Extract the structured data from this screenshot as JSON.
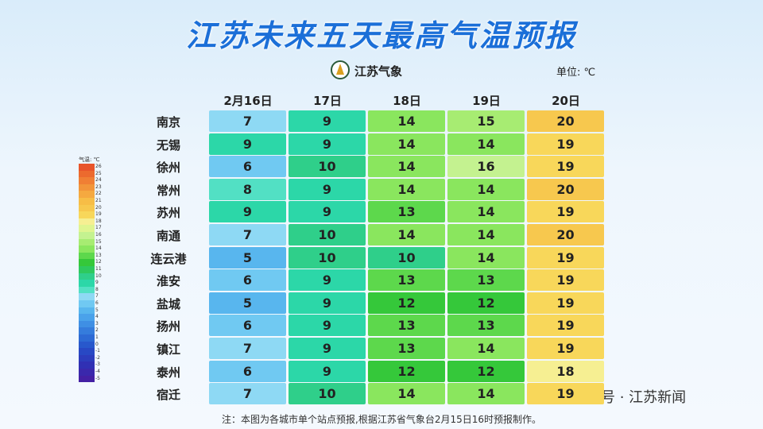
{
  "title": "江苏未来五天最高气温预报",
  "logo": "江苏气象",
  "unit": "单位: ℃",
  "table": {
    "header": [
      "2月16日",
      "17日",
      "18日",
      "19日",
      "20日"
    ],
    "rows": [
      {
        "city": "南京",
        "values": [
          7,
          9,
          14,
          15,
          20
        ]
      },
      {
        "city": "无锡",
        "values": [
          9,
          9,
          14,
          14,
          19
        ]
      },
      {
        "city": "徐州",
        "values": [
          6,
          10,
          14,
          16,
          19
        ]
      },
      {
        "city": "常州",
        "values": [
          8,
          9,
          14,
          14,
          20
        ]
      },
      {
        "city": "苏州",
        "values": [
          9,
          9,
          13,
          14,
          19
        ]
      },
      {
        "city": "南通",
        "values": [
          7,
          10,
          14,
          14,
          20
        ]
      },
      {
        "city": "连云港",
        "values": [
          5,
          10,
          10,
          14,
          19
        ]
      },
      {
        "city": "淮安",
        "values": [
          6,
          9,
          13,
          13,
          19
        ]
      },
      {
        "city": "盐城",
        "values": [
          5,
          9,
          12,
          12,
          19
        ]
      },
      {
        "city": "扬州",
        "values": [
          6,
          9,
          13,
          13,
          19
        ]
      },
      {
        "city": "镇江",
        "values": [
          7,
          9,
          13,
          14,
          19
        ]
      },
      {
        "city": "泰州",
        "values": [
          6,
          9,
          12,
          12,
          18
        ]
      },
      {
        "city": "宿迁",
        "values": [
          7,
          10,
          14,
          14,
          19
        ]
      }
    ]
  },
  "legend": {
    "label": "气温: ℃",
    "ticks": [
      26,
      25,
      24,
      23,
      22,
      21,
      20,
      19,
      18,
      17,
      16,
      15,
      14,
      13,
      12,
      11,
      10,
      9,
      8,
      7,
      6,
      5,
      4,
      3,
      2,
      1,
      0,
      -1,
      -2,
      -3,
      -4,
      -5
    ],
    "colors": [
      "#e8542a",
      "#ec6a2e",
      "#f07f34",
      "#f2953a",
      "#f5a940",
      "#f7bd46",
      "#f7c84e",
      "#f8d75a",
      "#f6ef92",
      "#dff590",
      "#c4f290",
      "#a7ec72",
      "#8ae65e",
      "#5dd84c",
      "#35c83a",
      "#2ec95e",
      "#2fcf8a",
      "#2cd7a8",
      "#52e0c4",
      "#8ed9f4",
      "#70c9f2",
      "#58b6ee",
      "#4aa2ea",
      "#3f8fe4",
      "#357cdc",
      "#2d6ad4",
      "#2858cc",
      "#2848c4",
      "#2c3cbc",
      "#3030b4",
      "#3a28ac",
      "#4420a4"
    ]
  },
  "note": "注：本图为各城市单个站点预报,根据江苏省气象台2月15日16时预报制作。",
  "watermark": "公众号 · 江苏新闻"
}
